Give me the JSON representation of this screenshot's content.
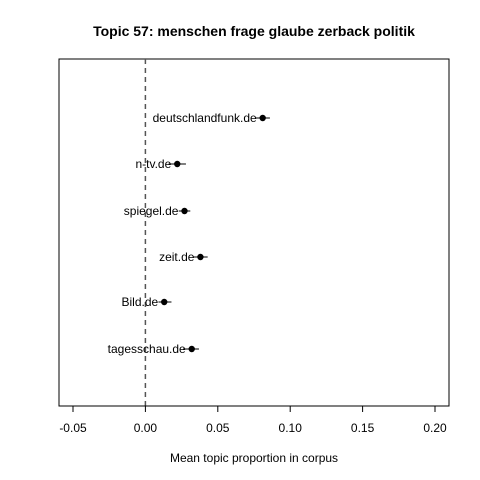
{
  "chart_data": {
    "type": "scatter",
    "title": "Topic 57: menschen frage glaube zerback politik",
    "xlabel": "Mean topic proportion in corpus",
    "ylabel": "",
    "xlim": [
      -0.05,
      0.2
    ],
    "xticks": [
      -0.05,
      0.0,
      0.05,
      0.1,
      0.15,
      0.2
    ],
    "xtick_labels": [
      "-0.05",
      "0.00",
      "0.05",
      "0.10",
      "0.15",
      "0.20"
    ],
    "reference_line": {
      "x": 0,
      "style": "dashed"
    },
    "grid": false,
    "points": [
      {
        "label": "deutschlandfunk.de",
        "x": 0.081,
        "ci_low": 0.076,
        "ci_high": 0.086
      },
      {
        "label": "n-tv.de",
        "x": 0.022,
        "ci_low": 0.016,
        "ci_high": 0.028
      },
      {
        "label": "spiegel.de",
        "x": 0.027,
        "ci_low": 0.023,
        "ci_high": 0.031
      },
      {
        "label": "zeit.de",
        "x": 0.038,
        "ci_low": 0.033,
        "ci_high": 0.043
      },
      {
        "label": "Bild.de",
        "x": 0.013,
        "ci_low": 0.009,
        "ci_high": 0.018
      },
      {
        "label": "tagesschau.de",
        "x": 0.032,
        "ci_low": 0.026,
        "ci_high": 0.037
      }
    ]
  }
}
